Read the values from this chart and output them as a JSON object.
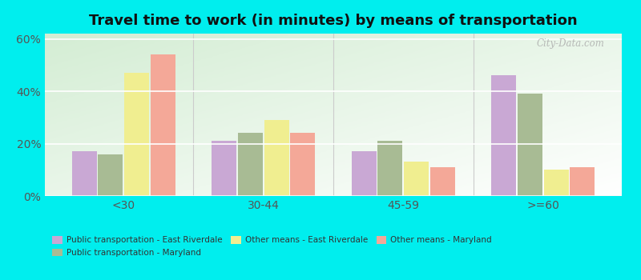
{
  "title": "Travel time to work (in minutes) by means of transportation",
  "categories": [
    "<30",
    "30-44",
    "45-59",
    ">=60"
  ],
  "series_order": [
    "Public transportation - East Riverdale",
    "Public transportation - Maryland",
    "Other means - East Riverdale",
    "Other means - Maryland"
  ],
  "series": {
    "Public transportation - East Riverdale": [
      17,
      21,
      17,
      46
    ],
    "Public transportation - Maryland": [
      16,
      24,
      21,
      39
    ],
    "Other means - East Riverdale": [
      47,
      29,
      13,
      10
    ],
    "Other means - Maryland": [
      54,
      24,
      11,
      11
    ]
  },
  "colors": {
    "Public transportation - East Riverdale": "#c9a8d4",
    "Public transportation - Maryland": "#a8bb94",
    "Other means - East Riverdale": "#f0ee90",
    "Other means - Maryland": "#f4a898"
  },
  "ylim": [
    0,
    62
  ],
  "yticks": [
    0,
    20,
    40,
    60
  ],
  "ytick_labels": [
    "0%",
    "20%",
    "40%",
    "60%"
  ],
  "outer_background": "#00EEEE",
  "title_fontsize": 13,
  "watermark": "City-Data.com"
}
